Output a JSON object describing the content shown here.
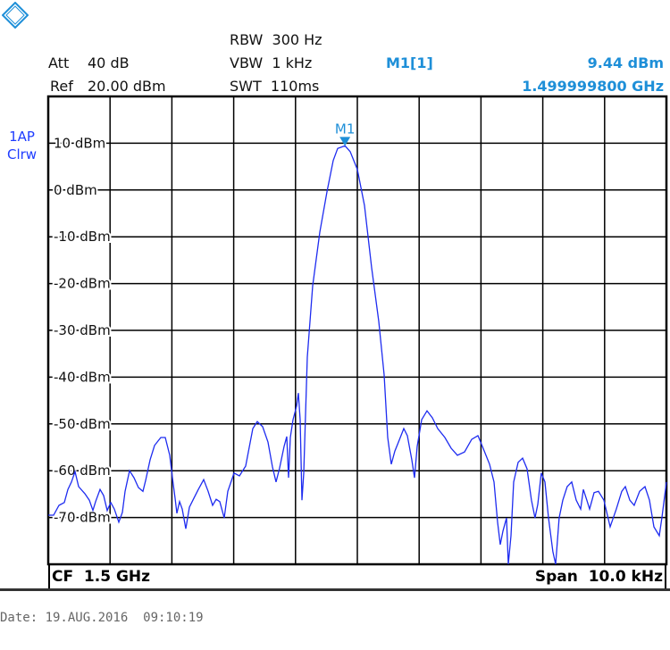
{
  "header": {
    "att_label": "Att",
    "att_value": "40 dB",
    "ref_label": "Ref",
    "ref_value": "20.00 dBm",
    "rbw": "RBW  300 Hz",
    "vbw": "VBW  1 kHz",
    "swt": "SWT  110ms",
    "marker_name": "M1[1]",
    "marker_level": "9.44 dBm",
    "marker_freq": "1.499999800 GHz"
  },
  "trace_info": {
    "line1": "1AP",
    "line2": "Clrw"
  },
  "footer": {
    "cf": "CF  1.5 GHz",
    "span": "Span  10.0 kHz",
    "date": "Date: 19.AUG.2016  09:10:19"
  },
  "colors": {
    "trace": "#1e2cf0",
    "marker": "#1e8fd8",
    "grid": "#000000"
  },
  "icons": {
    "logo": "rohde-schwarz-logo"
  },
  "chart_data": {
    "type": "line",
    "title": "",
    "xlabel": "",
    "ylabel": "",
    "xlim": [
      1499995000,
      1500005000
    ],
    "ylim": [
      -80,
      20
    ],
    "grid": true,
    "x_divisions": 10,
    "yticks": [
      10,
      0,
      -10,
      -20,
      -30,
      -40,
      -50,
      -60,
      -70
    ],
    "ytick_labels": [
      "10 dBm",
      "0 dBm",
      "-10 dBm",
      "-20 dBm",
      "-30 dBm",
      "-40 dBm",
      "-50 dBm",
      "-60 dBm",
      "-70 dBm"
    ],
    "marker": {
      "label": "M1",
      "x": 1499999800,
      "y": 9.44
    },
    "series": [
      {
        "x": [
          1499995000,
          1499995087,
          1499995173,
          1499995260,
          1499995318,
          1499995376,
          1499995434,
          1499995491,
          1499995592,
          1499995665,
          1499995723,
          1499995766,
          1499995838,
          1499995896,
          1499995954,
          1499996012,
          1499996069,
          1499996142,
          1499996199,
          1499996243,
          1499996315,
          1499996387,
          1499996460,
          1499996532,
          1499996575,
          1499996647,
          1499996720,
          1499996821,
          1499996893,
          1499996965,
          1499997009,
          1499997052,
          1499997081,
          1499997124,
          1499997168,
          1499997225,
          1499997283,
          1499997355,
          1499997428,
          1499997514,
          1499997587,
          1499997659,
          1499997717,
          1499997774,
          1499997847,
          1499997904,
          1499998006,
          1499998092,
          1499998193,
          1499998309,
          1499998381,
          1499998468,
          1499998555,
          1499998627,
          1499998685,
          1499998743,
          1499998815,
          1499998858,
          1499998887,
          1499998916,
          1499998959,
          1499999017,
          1499999046,
          1499999075,
          1499999104,
          1499999133,
          1499999191,
          1499999277,
          1499999393,
          1499999508,
          1499999610,
          1499999682,
          1499999800,
          1499999884,
          1500000000,
          1500000116,
          1500000231,
          1500000347,
          1500000434,
          1500000491,
          1500000549,
          1500000607,
          1500000665,
          1500000751,
          1500000809,
          1500000881,
          1500000925,
          1500000968,
          1500001040,
          1500001127,
          1500001214,
          1500001301,
          1500001416,
          1500001517,
          1500001618,
          1500001734,
          1500001850,
          1500001951,
          1500002023,
          1500002139,
          1500002211,
          1500002269,
          1500002312,
          1500002355,
          1500002413,
          1500002442,
          1500002485,
          1500002529,
          1500002601,
          1500002673,
          1500002745,
          1500002817,
          1500002875,
          1500002919,
          1500002976,
          1500003034,
          1500003092,
          1500003164,
          1500003208,
          1500003265,
          1500003323,
          1500003395,
          1500003468,
          1500003540,
          1500003612,
          1500003656,
          1500003713,
          1500003757,
          1500003829,
          1500003901,
          1500003988,
          1500004089,
          1500004190,
          1500004277,
          1500004335,
          1500004407,
          1500004479,
          1500004566,
          1500004653,
          1500004725,
          1500004797,
          1500004884,
          1500004927,
          1500005000
        ],
        "y": [
          -69.5,
          -69.5,
          -67.4,
          -66.8,
          -64.0,
          -62.4,
          -60.2,
          -63.4,
          -64.9,
          -66.3,
          -68.5,
          -66.6,
          -64.0,
          -65.3,
          -68.5,
          -66.8,
          -68.2,
          -71.0,
          -68.9,
          -64.4,
          -60.0,
          -61.5,
          -63.6,
          -64.4,
          -62.1,
          -57.7,
          -54.6,
          -52.9,
          -52.9,
          -56.7,
          -61.5,
          -65.9,
          -69.1,
          -66.6,
          -68.2,
          -72.4,
          -67.8,
          -65.9,
          -64.0,
          -61.9,
          -64.4,
          -67.4,
          -66.1,
          -66.6,
          -70.1,
          -64.4,
          -60.5,
          -61.1,
          -59.0,
          -51.0,
          -49.5,
          -50.6,
          -53.9,
          -59.2,
          -62.4,
          -59.4,
          -54.8,
          -52.7,
          -61.5,
          -52.9,
          -49.1,
          -46.2,
          -43.4,
          -49.1,
          -66.3,
          -60.5,
          -35.7,
          -20.5,
          -9.0,
          -0.4,
          6.3,
          8.9,
          9.44,
          8.2,
          4.4,
          -3.3,
          -16.6,
          -28.1,
          -39.5,
          -52.9,
          -58.6,
          -55.8,
          -53.9,
          -51.0,
          -52.5,
          -57.7,
          -61.5,
          -54.8,
          -49.1,
          -47.2,
          -48.7,
          -51.0,
          -52.9,
          -55.2,
          -56.7,
          -56.0,
          -53.3,
          -52.5,
          -54.8,
          -58.6,
          -62.4,
          -71.0,
          -75.8,
          -72.9,
          -70.1,
          -80.0,
          -73.9,
          -62.4,
          -58.2,
          -57.3,
          -59.6,
          -66.3,
          -70.1,
          -67.2,
          -60.5,
          -62.4,
          -70.1,
          -77.3,
          -80.0,
          -70.1,
          -66.3,
          -63.4,
          -62.4,
          -66.3,
          -68.2,
          -64.0,
          -66.3,
          -68.2,
          -64.7,
          -64.4,
          -66.3,
          -72.0,
          -68.2,
          -64.4,
          -63.4,
          -66.3,
          -67.4,
          -64.4,
          -63.4,
          -66.3,
          -72.0,
          -73.9,
          -70.1,
          -62.4
        ]
      }
    ]
  }
}
